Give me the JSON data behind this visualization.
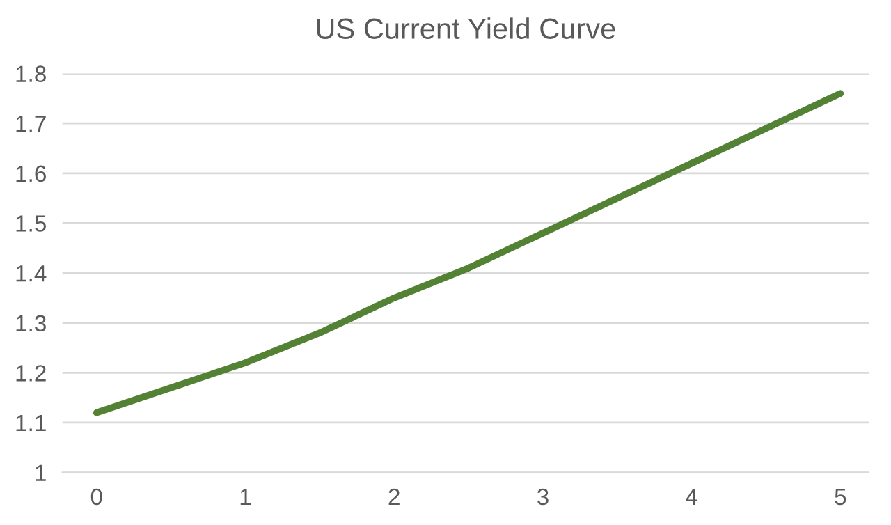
{
  "chart_data": {
    "type": "line",
    "title": "US Current Yield Curve",
    "series": [
      {
        "color": "#548235",
        "x": [
          0,
          0.5,
          1,
          1.5,
          2,
          2.5,
          3,
          3.5,
          4,
          4.5,
          5
        ],
        "values": [
          1.12,
          1.17,
          1.22,
          1.28,
          1.35,
          1.41,
          1.48,
          1.55,
          1.62,
          1.69,
          1.76
        ]
      }
    ],
    "xlim": [
      -0.23,
      5.19
    ],
    "xticks": [
      0,
      1,
      2,
      3,
      4,
      5
    ],
    "ylim": [
      1,
      1.8
    ],
    "yticks": [
      1,
      1.1,
      1.2,
      1.3,
      1.4,
      1.5,
      1.6,
      1.7,
      1.8
    ],
    "grid": "y",
    "legend": false,
    "marker": "none",
    "line_style": "solid"
  }
}
